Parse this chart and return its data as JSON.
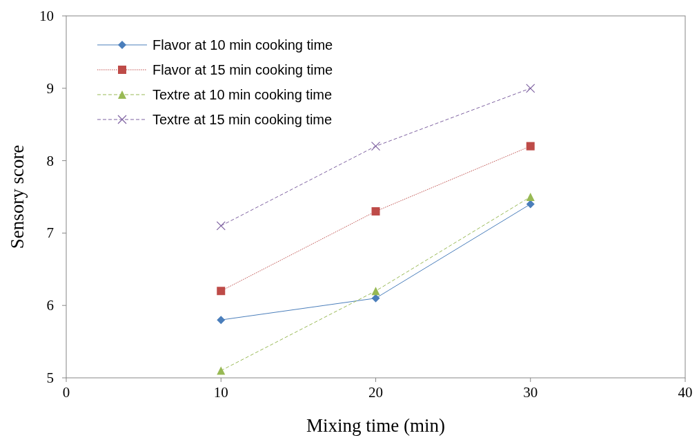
{
  "chart_data": {
    "type": "line",
    "xlabel": "Mixing time (min)",
    "ylabel": "Sensory score",
    "x": [
      10,
      20,
      30
    ],
    "xlim": [
      0,
      40
    ],
    "xticks": [
      0,
      10,
      20,
      30,
      40
    ],
    "ylim": [
      5,
      10
    ],
    "yticks": [
      5,
      6,
      7,
      8,
      9,
      10
    ],
    "grid": false,
    "legend": "top left",
    "series": [
      {
        "name": "Flavor at 10 min cooking time",
        "color": "#4a7ebb",
        "values": [
          5.8,
          6.1,
          7.4
        ],
        "marker": "diamond",
        "line_style": "solid"
      },
      {
        "name": "Flavor at 15 min cooking time",
        "color": "#be4b48",
        "values": [
          6.2,
          7.3,
          8.2
        ],
        "marker": "square",
        "line_style": "dotted"
      },
      {
        "name": "Textre at 10 min cooking time",
        "color": "#98b954",
        "values": [
          5.1,
          6.2,
          7.5
        ],
        "marker": "triangle",
        "line_style": "dashed"
      },
      {
        "name": "Textre at 15 min cooking time",
        "color": "#7d60a0",
        "values": [
          7.1,
          8.2,
          9.0
        ],
        "marker": "cross",
        "line_style": "dashed"
      }
    ]
  }
}
